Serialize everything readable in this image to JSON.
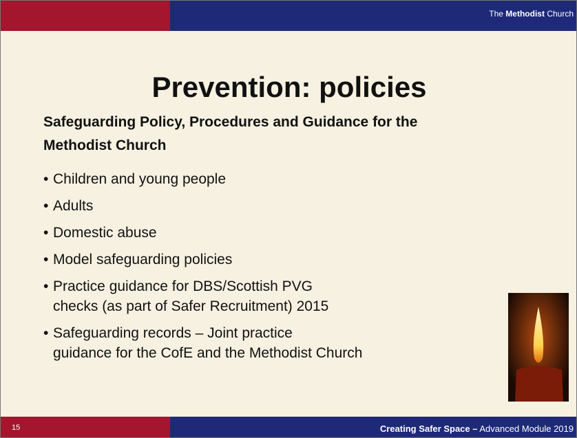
{
  "header": {
    "brand_prefix": "The",
    "brand_bold": "Methodist",
    "brand_suffix": "Church"
  },
  "title": "Prevention: policies",
  "subtitle": [
    "Safeguarding Policy, Procedures and Guidance for the",
    "Methodist Church"
  ],
  "bullets": [
    [
      "Children and young people"
    ],
    [
      "Adults"
    ],
    [
      "Domestic abuse"
    ],
    [
      "Model safeguarding policies"
    ],
    [
      "Practice guidance for DBS/Scottish PVG",
      "checks (as part of Safer Recruitment) 2015"
    ],
    [
      "Safeguarding records – Joint practice",
      "guidance for the CofE and the Methodist Church"
    ]
  ],
  "footer": {
    "page": "15",
    "course_bold": "Creating Safer Space –",
    "course_rest": "Advanced Module 2019"
  }
}
